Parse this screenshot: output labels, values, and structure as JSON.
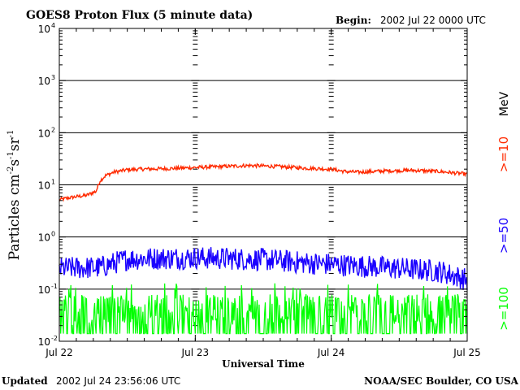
{
  "header": {
    "title": "GOES8 Proton Flux (5 minute data)",
    "begin_label": "Begin:",
    "begin_value": "2002 Jul 22 0000 UTC"
  },
  "footer": {
    "updated_label": "Updated",
    "updated_value": "2002 Jul 24 23:56:06 UTC",
    "credit": "NOAA/SEC Boulder, CO USA"
  },
  "chart_data": {
    "type": "line",
    "title": "GOES8 Proton Flux (5 minute data)",
    "xlabel": "Universal Time",
    "ylabel": "Particles cm-2s-1sr-1",
    "ylabel_parts": [
      "Particles cm",
      "-2",
      "s",
      "-1",
      "sr",
      "-1"
    ],
    "y_scale": "log",
    "ylim": [
      0.01,
      10000
    ],
    "y_ticks": [
      {
        "base": "10",
        "exp": "-2",
        "value": 0.01
      },
      {
        "base": "10",
        "exp": "-1",
        "value": 0.1
      },
      {
        "base": "10",
        "exp": "0",
        "value": 1
      },
      {
        "base": "10",
        "exp": "1",
        "value": 10
      },
      {
        "base": "10",
        "exp": "2",
        "value": 100
      },
      {
        "base": "10",
        "exp": "3",
        "value": 1000
      },
      {
        "base": "10",
        "exp": "4",
        "value": 10000
      }
    ],
    "x_ticks": [
      "Jul 22",
      "Jul 23",
      "Jul 24",
      "Jul 25"
    ],
    "x_range_days": [
      0,
      3
    ],
    "threshold_line": 10,
    "units_label": "MeV",
    "series": [
      {
        "name": ">=10",
        "color": "#ff2a00",
        "noise": 0.035,
        "points": [
          [
            0.0,
            5.2
          ],
          [
            0.1,
            5.8
          ],
          [
            0.2,
            6.3
          ],
          [
            0.27,
            7.5
          ],
          [
            0.3,
            12
          ],
          [
            0.34,
            15
          ],
          [
            0.4,
            17.5
          ],
          [
            0.5,
            19.5
          ],
          [
            0.6,
            20
          ],
          [
            0.8,
            20.5
          ],
          [
            1.0,
            21.5
          ],
          [
            1.2,
            22.5
          ],
          [
            1.4,
            23.5
          ],
          [
            1.6,
            22.5
          ],
          [
            1.8,
            21
          ],
          [
            2.0,
            20
          ],
          [
            2.1,
            18
          ],
          [
            2.2,
            17.5
          ],
          [
            2.4,
            18.5
          ],
          [
            2.6,
            19
          ],
          [
            2.8,
            18
          ],
          [
            3.0,
            16
          ]
        ]
      },
      {
        "name": ">=50",
        "color": "#1a00ff",
        "noise": 0.22,
        "points": [
          [
            0.0,
            0.25
          ],
          [
            0.3,
            0.26
          ],
          [
            0.5,
            0.38
          ],
          [
            1.0,
            0.4
          ],
          [
            1.5,
            0.37
          ],
          [
            1.8,
            0.32
          ],
          [
            2.0,
            0.3
          ],
          [
            2.5,
            0.25
          ],
          [
            2.8,
            0.22
          ],
          [
            3.0,
            0.15
          ]
        ]
      },
      {
        "name": ">=100",
        "color": "#00ff00",
        "noise": 0.0,
        "points": [
          [
            0.0,
            0.03
          ],
          [
            1.5,
            0.03
          ],
          [
            3.0,
            0.025
          ]
        ]
      }
    ]
  }
}
